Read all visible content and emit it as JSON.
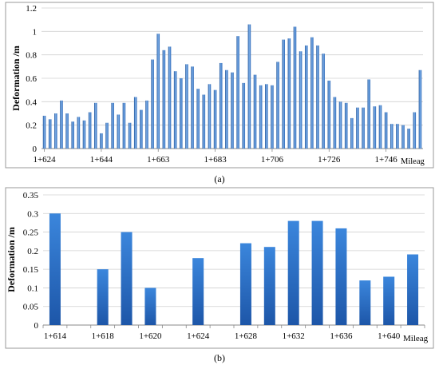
{
  "panels": [
    {
      "caption": "(a)",
      "chart_data": {
        "type": "bar",
        "ylabel": "Deformation /m",
        "xlabel": "Mileag",
        "ylim": [
          0,
          1.2
        ],
        "yticks": [
          "0",
          "0.2",
          "0.4",
          "0.6",
          "0.8",
          "1",
          "1.2"
        ],
        "xtick_labels": [
          "1+624",
          "1+644",
          "1+663",
          "1+683",
          "1+706",
          "1+726",
          "1+746"
        ],
        "xtick_label_bar_index": [
          0,
          10,
          20,
          30,
          40,
          50,
          60
        ],
        "values": [
          0.28,
          0.25,
          0.3,
          0.41,
          0.3,
          0.23,
          0.27,
          0.24,
          0.31,
          0.39,
          0.13,
          0.22,
          0.39,
          0.29,
          0.39,
          0.22,
          0.44,
          0.33,
          0.41,
          0.76,
          0.98,
          0.84,
          0.87,
          0.66,
          0.6,
          0.72,
          0.7,
          0.51,
          0.46,
          0.55,
          0.5,
          0.73,
          0.67,
          0.65,
          0.96,
          0.56,
          1.06,
          0.63,
          0.54,
          0.55,
          0.54,
          0.74,
          0.93,
          0.94,
          1.04,
          0.83,
          0.88,
          0.95,
          0.88,
          0.81,
          0.58,
          0.44,
          0.4,
          0.39,
          0.26,
          0.35,
          0.35,
          0.59,
          0.36,
          0.37,
          0.31,
          0.21,
          0.21,
          0.2,
          0.17,
          0.31,
          0.67
        ],
        "grid": true,
        "legend": "none",
        "bar_color": "#2f72c4"
      }
    },
    {
      "caption": "(b)",
      "chart_data": {
        "type": "bar",
        "ylabel": "Deformation /m",
        "xlabel": "Mileag",
        "ylim": [
          0,
          0.35
        ],
        "yticks": [
          "0",
          "0.05",
          "0.1",
          "0.15",
          "0.2",
          "0.25",
          "0.3",
          "0.35"
        ],
        "categories": [
          "1+614",
          "",
          "1+618",
          "",
          "1+620",
          "",
          "1+624",
          "",
          "1+628",
          "",
          "1+632",
          "",
          "1+636",
          "",
          "1+640",
          ""
        ],
        "values": [
          0.3,
          null,
          0.15,
          0.25,
          0.1,
          null,
          0.18,
          null,
          0.22,
          0.21,
          0.28,
          0.28,
          0.26,
          0.12,
          0.13,
          0.19
        ],
        "grid": true,
        "legend": "none",
        "bar_color": "#2f72c4"
      }
    }
  ]
}
